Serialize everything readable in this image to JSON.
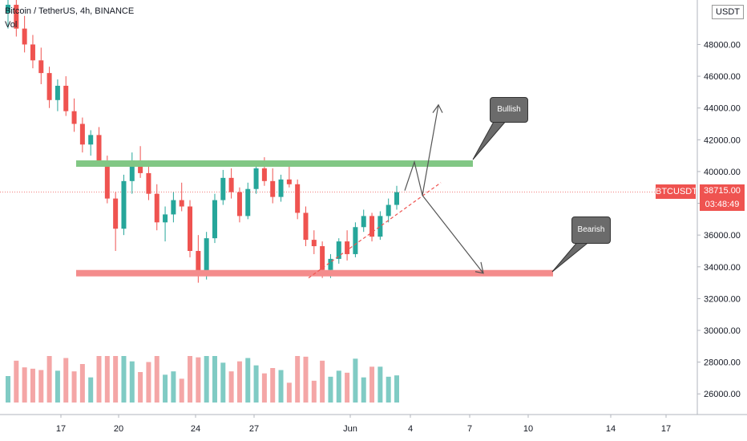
{
  "header": {
    "title": "Bitcoin / TetherUS, 4h, BINANCE",
    "indicator": "Vol"
  },
  "currency_label": "USDT",
  "price_tag": {
    "symbol": "BTCUSDT",
    "price": "38715.00",
    "countdown": "03:48:49",
    "color": "#ef5350"
  },
  "callouts": [
    {
      "text": "Bullish"
    },
    {
      "text": "Bearish"
    }
  ],
  "colors": {
    "up": "#26a69a",
    "down": "#ef5350",
    "resistance": "#81c784",
    "support": "#f48c8c",
    "vol_up": "#80cbc4",
    "vol_down": "#f4a6a6"
  },
  "chart_data": {
    "type": "candlestick",
    "symbol": "Bitcoin / TetherUS",
    "interval": "4h",
    "exchange": "BINANCE",
    "y_axis": {
      "ticks": [
        26000,
        28000,
        30000,
        32000,
        34000,
        36000,
        38000,
        40000,
        42000,
        44000,
        46000,
        48000
      ],
      "tick_labels": [
        "26000.00",
        "28000.00",
        "30000.00",
        "32000.00",
        "34000.00",
        "36000.00",
        "38000.00",
        "40000.00",
        "42000.00",
        "44000.00",
        "46000.00",
        "48000.00"
      ],
      "range": [
        24700,
        50800
      ]
    },
    "x_axis": {
      "tick_labels": [
        "17",
        "20",
        "24",
        "27",
        "Jun",
        "4",
        "7",
        "10",
        "14",
        "17"
      ]
    },
    "current_price": 38715,
    "resistance_level": 40500,
    "support_level": 33600,
    "rising_trendline": [
      [
        33300,
        0
      ],
      [
        39300,
        1
      ]
    ],
    "projections": {
      "bullish_target": 44200,
      "bearish_target": 33600
    },
    "candles_approx": [
      [
        50000,
        51000,
        49000,
        50500
      ],
      [
        50500,
        50800,
        48500,
        49000
      ],
      [
        49000,
        49800,
        47500,
        48000
      ],
      [
        48000,
        48600,
        46500,
        47000
      ],
      [
        47000,
        47800,
        45500,
        46200
      ],
      [
        46200,
        46600,
        44000,
        44500
      ],
      [
        44500,
        45800,
        43800,
        45400
      ],
      [
        45400,
        46000,
        43500,
        43800
      ],
      [
        43800,
        44600,
        42500,
        43000
      ],
      [
        43000,
        43400,
        41200,
        41700
      ],
      [
        41700,
        42600,
        41000,
        42300
      ],
      [
        42300,
        42800,
        40300,
        40500
      ],
      [
        40500,
        41000,
        38000,
        38300
      ],
      [
        38300,
        38700,
        35000,
        36400
      ],
      [
        36400,
        39800,
        36000,
        39400
      ],
      [
        39400,
        41200,
        38600,
        40700
      ],
      [
        40700,
        41600,
        39600,
        39900
      ],
      [
        39900,
        40700,
        38200,
        38600
      ],
      [
        38600,
        39200,
        36300,
        36800
      ],
      [
        36800,
        37800,
        35600,
        37300
      ],
      [
        37300,
        38700,
        36800,
        38200
      ],
      [
        38200,
        39300,
        37500,
        37800
      ],
      [
        37800,
        38200,
        34600,
        35000
      ],
      [
        35000,
        36000,
        33000,
        33600
      ],
      [
        33600,
        36200,
        33200,
        35800
      ],
      [
        35800,
        38600,
        35500,
        38200
      ],
      [
        38200,
        40100,
        37900,
        39600
      ],
      [
        39600,
        40200,
        38300,
        38700
      ],
      [
        38700,
        39000,
        36800,
        37200
      ],
      [
        37200,
        39300,
        37000,
        38900
      ],
      [
        38900,
        40600,
        38600,
        40200
      ],
      [
        40200,
        40900,
        39100,
        39400
      ],
      [
        39400,
        40200,
        38000,
        38400
      ],
      [
        38400,
        39800,
        38100,
        39500
      ],
      [
        39500,
        40400,
        39000,
        39200
      ],
      [
        39200,
        39500,
        37000,
        37400
      ],
      [
        37400,
        37800,
        35300,
        35700
      ],
      [
        35700,
        36300,
        34800,
        35300
      ],
      [
        35300,
        35600,
        33300,
        33800
      ],
      [
        33800,
        34800,
        33300,
        34500
      ],
      [
        34500,
        35800,
        34200,
        35600
      ],
      [
        35600,
        36300,
        34400,
        34800
      ],
      [
        34800,
        36800,
        34600,
        36500
      ],
      [
        36500,
        37600,
        36200,
        37200
      ],
      [
        37200,
        37400,
        35600,
        35900
      ],
      [
        35900,
        37500,
        35700,
        37200
      ],
      [
        37200,
        38300,
        36800,
        37900
      ],
      [
        37900,
        39100,
        37600,
        38700
      ]
    ]
  }
}
